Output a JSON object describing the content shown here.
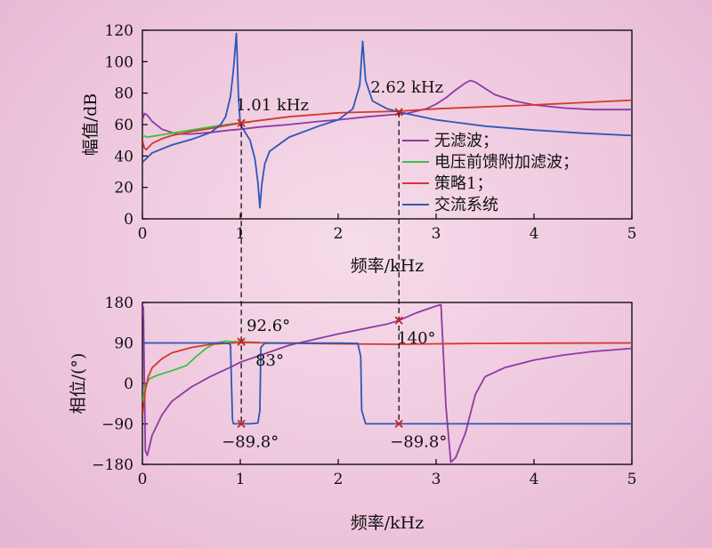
{
  "chart_data": [
    {
      "type": "line",
      "xlabel": "频率/kHz",
      "ylabel": "幅值/dB",
      "xlim": [
        0,
        5
      ],
      "ylim": [
        0,
        120
      ],
      "xticks": [
        0,
        1,
        2,
        3,
        4,
        5
      ],
      "yticks": [
        0,
        20,
        40,
        60,
        80,
        100,
        120
      ],
      "legend_position": "right",
      "series": [
        {
          "name": "无滤波；",
          "color": "#8e3aa6",
          "x": [
            0.001,
            0.02,
            0.05,
            0.1,
            0.2,
            0.35,
            0.5,
            0.7,
            0.9,
            1.0,
            1.2,
            1.5,
            1.8,
            2.0,
            2.3,
            2.5,
            2.7,
            2.9,
            3.0,
            3.1,
            3.2,
            3.3,
            3.35,
            3.4,
            3.5,
            3.6,
            3.8,
            4.0,
            4.3,
            4.6,
            5.0
          ],
          "y": [
            63,
            67,
            66,
            62,
            57,
            54,
            54,
            55,
            56.5,
            57,
            58.5,
            60,
            62,
            63,
            65,
            66,
            67,
            70,
            73,
            77,
            82,
            86.5,
            88,
            87,
            83,
            79,
            75,
            72.5,
            70.5,
            69.5,
            69.5
          ]
        },
        {
          "name": "电压前馈附加滤波；",
          "color": "#3fbf3f",
          "x": [
            0.001,
            0.05,
            0.1,
            0.2,
            0.3,
            0.4,
            0.5,
            0.6,
            0.7,
            0.8,
            0.9,
            0.95,
            1.0,
            1.1
          ],
          "y": [
            53,
            52,
            52.5,
            53.5,
            54.5,
            55.5,
            56.5,
            57.5,
            58.5,
            59.5,
            60.3,
            60.7,
            61,
            61.5
          ]
        },
        {
          "name": "策略1；",
          "color": "#d23a2a",
          "x": [
            0.001,
            0.02,
            0.04,
            0.07,
            0.1,
            0.2,
            0.3,
            0.5,
            0.7,
            1.0,
            1.5,
            2.0,
            2.62,
            3.0,
            4.0,
            5.0
          ],
          "y": [
            50,
            45,
            44,
            46,
            48,
            51,
            53,
            55.5,
            57.5,
            61,
            65,
            67.5,
            68.5,
            70,
            72.5,
            75.5
          ]
        },
        {
          "name": "交流系统",
          "color": "#2e57b8",
          "x": [
            0.001,
            0.1,
            0.3,
            0.5,
            0.7,
            0.8,
            0.85,
            0.9,
            0.93,
            0.96,
            0.97,
            0.98,
            1.0,
            1.1,
            1.15,
            1.18,
            1.2,
            1.22,
            1.25,
            1.3,
            1.5,
            1.8,
            2.0,
            2.15,
            2.22,
            2.25,
            2.28,
            2.35,
            2.5,
            2.62,
            3.0,
            3.5,
            4.0,
            4.5,
            5.0
          ],
          "y": [
            36,
            42,
            47,
            50.5,
            55,
            60,
            65,
            78,
            95,
            118,
            100,
            80,
            60,
            50,
            38,
            23,
            7,
            22,
            35,
            43,
            52,
            59,
            63,
            70,
            85,
            113,
            88,
            75,
            70,
            68,
            63,
            59,
            56.5,
            54.5,
            53
          ]
        }
      ],
      "annotations": [
        {
          "text": "1.01 kHz",
          "x": 1.01,
          "y": 61
        },
        {
          "text": "2.62 kHz",
          "x": 2.62,
          "y": 68
        }
      ]
    },
    {
      "type": "line",
      "xlabel": "频率/kHz",
      "ylabel": "相位/(°)",
      "xlim": [
        0,
        5
      ],
      "ylim": [
        -180,
        180
      ],
      "xticks": [
        0,
        1,
        2,
        3,
        4,
        5
      ],
      "yticks": [
        -180,
        -90,
        0,
        90,
        180
      ],
      "series": [
        {
          "name": "无滤波；",
          "color": "#8e3aa6",
          "x": [
            0.005,
            0.01,
            0.02,
            0.03,
            0.05,
            0.1,
            0.2,
            0.3,
            0.5,
            0.7,
            0.9,
            1.0,
            1.5,
            2.0,
            2.5,
            2.62,
            2.8,
            3.0,
            3.05,
            3.08,
            3.1,
            3.15,
            3.2,
            3.3,
            3.4,
            3.5,
            3.7,
            4.0,
            4.3,
            4.6,
            5.0
          ],
          "y": [
            150,
            170,
            10,
            -150,
            -160,
            -115,
            -70,
            -40,
            -8,
            16,
            36,
            47,
            85,
            110,
            132,
            140,
            157,
            172,
            175,
            40,
            -50,
            -175,
            -165,
            -110,
            -25,
            15,
            35,
            52,
            63,
            71,
            78
          ]
        },
        {
          "name": "电压前馈附加滤波；",
          "color": "#3fbf3f",
          "x": [
            0.001,
            0.03,
            0.07,
            0.15,
            0.3,
            0.45,
            0.55,
            0.65,
            0.75,
            0.85,
            0.9,
            1.0,
            1.2
          ],
          "y": [
            -40,
            -5,
            10,
            18,
            28,
            40,
            60,
            78,
            90,
            94,
            93,
            92.6,
            91
          ]
        },
        {
          "name": "策略1；",
          "color": "#d23a2a",
          "x": [
            0.001,
            0.01,
            0.03,
            0.06,
            0.1,
            0.2,
            0.3,
            0.5,
            0.7,
            1.0,
            1.5,
            2.0,
            2.62,
            3.0,
            3.5,
            4.0,
            5.0
          ],
          "y": [
            -70,
            -55,
            -15,
            15,
            35,
            55,
            68,
            80,
            87,
            91,
            89.5,
            88,
            87,
            88,
            89,
            89.5,
            90
          ]
        },
        {
          "name": "交流系统",
          "color": "#2e57b8",
          "x": [
            0.001,
            0.3,
            0.6,
            0.8,
            0.88,
            0.9,
            0.91,
            0.92,
            0.93,
            0.97,
            1.0,
            1.1,
            1.18,
            1.2,
            1.21,
            1.25,
            1.5,
            2.0,
            2.2,
            2.23,
            2.24,
            2.28,
            2.5,
            3.0,
            4.0,
            5.0
          ],
          "y": [
            90,
            90,
            90,
            90,
            89,
            85,
            0,
            -80,
            -89.8,
            -89.8,
            -89.8,
            -89.8,
            -88,
            -60,
            80,
            89.5,
            89.8,
            89.8,
            89,
            60,
            -60,
            -89.8,
            -89.8,
            -89.8,
            -89.8,
            -89.8
          ]
        }
      ],
      "annotations": [
        {
          "text": "92.6°",
          "x": 1.01,
          "y": 92.6
        },
        {
          "text": "83°",
          "x": 1.01,
          "y": 83
        },
        {
          "text": "−89.8°",
          "x": 1.01,
          "y": -89.8
        },
        {
          "text": "140°",
          "x": 2.62,
          "y": 140
        },
        {
          "text": "−89.8°",
          "x": 2.62,
          "y": -89.8
        }
      ]
    }
  ]
}
